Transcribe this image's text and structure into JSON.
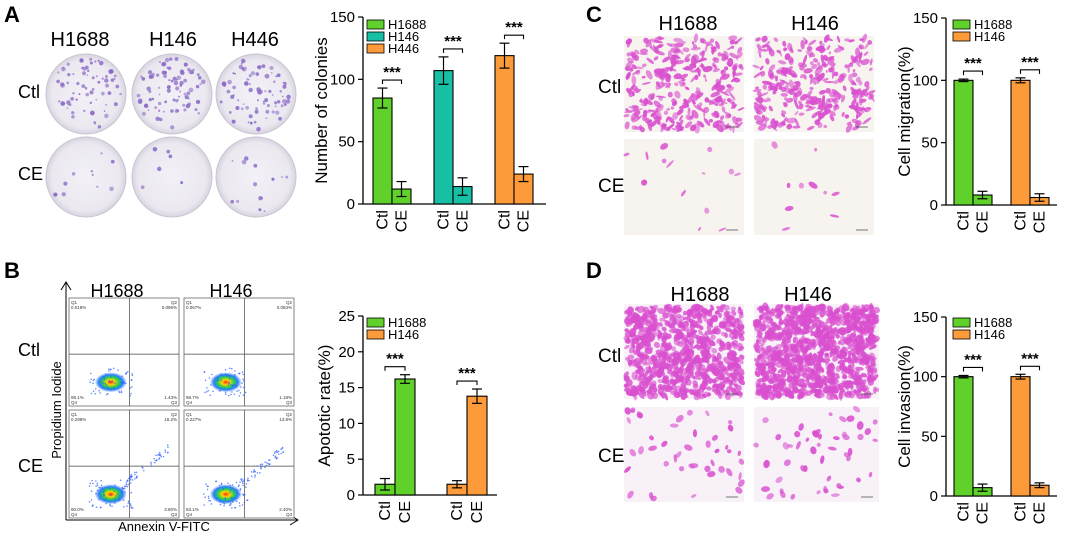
{
  "panels": {
    "A": {
      "letter": "A",
      "col_labels": [
        "H1688",
        "H146",
        "H446"
      ],
      "row_labels": [
        "Ctl",
        "CE"
      ]
    },
    "B": {
      "letter": "B",
      "col_labels": [
        "H1688",
        "H146"
      ],
      "row_labels": [
        "Ctl",
        "CE"
      ],
      "y_axis_label": "Propidium Iodide",
      "x_axis_label": "Annexin V-FITC",
      "quadrant_labels": [
        "Q1",
        "Q2",
        "Q4",
        "Q3"
      ],
      "quadrant_values": [
        [
          "0.018%",
          "0.096%",
          "98.1%",
          "1.43%"
        ],
        [
          "0.067%",
          "0.083%",
          "98.7%",
          "1.18%"
        ],
        [
          "0.298%",
          "16.2%",
          "80.0%",
          "3.80%"
        ],
        [
          "0.227%",
          "13.8%",
          "83.1%",
          "2.40%"
        ]
      ]
    },
    "C": {
      "letter": "C",
      "col_labels": [
        "H1688",
        "H146"
      ],
      "row_labels": [
        "Ctl",
        "CE"
      ]
    },
    "D": {
      "letter": "D",
      "col_labels": [
        "H1688",
        "H146"
      ],
      "row_labels": [
        "Ctl",
        "CE"
      ]
    }
  },
  "colors": {
    "green": "#5fd12a",
    "teal": "#18bfa5",
    "orange": "#fd9a3a",
    "crystal_violet": "#8c6bc8",
    "eosin_pink": "#d94fcf"
  },
  "chart_data": [
    {
      "id": "A",
      "type": "bar",
      "categories": [
        "Ctl",
        "CE"
      ],
      "series": [
        {
          "name": "H1688",
          "values": [
            85,
            12
          ],
          "errors": [
            8,
            6
          ],
          "color": "#5fd12a"
        },
        {
          "name": "H146",
          "values": [
            107,
            14
          ],
          "errors": [
            11,
            7
          ],
          "color": "#18bfa5"
        },
        {
          "name": "H446",
          "values": [
            119,
            24
          ],
          "errors": [
            10,
            6
          ],
          "color": "#fd9a3a"
        }
      ],
      "ylabel": "Number of colonies",
      "ylim": [
        0,
        150
      ],
      "yticks": [
        0,
        50,
        100,
        150
      ],
      "significance": [
        "***",
        "***",
        "***"
      ],
      "legend": "top-left"
    },
    {
      "id": "B",
      "type": "bar",
      "categories": [
        "Ctl",
        "CE"
      ],
      "series": [
        {
          "name": "H1688",
          "values": [
            1.5,
            16.2
          ],
          "errors": [
            0.8,
            0.6
          ],
          "color": "#5fd12a"
        },
        {
          "name": "H146",
          "values": [
            1.5,
            13.8
          ],
          "errors": [
            0.5,
            1.0
          ],
          "color": "#fd9a3a"
        }
      ],
      "ylabel": "Apototic rate(%)",
      "ylim": [
        0,
        25
      ],
      "yticks": [
        0,
        5,
        10,
        15,
        20,
        25
      ],
      "significance": [
        "***",
        "***"
      ],
      "legend": "top-left"
    },
    {
      "id": "C",
      "type": "bar",
      "categories": [
        "Ctl",
        "CE"
      ],
      "series": [
        {
          "name": "H1688",
          "values": [
            100,
            8
          ],
          "errors": [
            1,
            3
          ],
          "color": "#5fd12a"
        },
        {
          "name": "H146",
          "values": [
            100,
            6
          ],
          "errors": [
            2,
            3
          ],
          "color": "#fd9a3a"
        }
      ],
      "ylabel": "Cell migration(%)",
      "ylim": [
        0,
        150
      ],
      "yticks": [
        0,
        50,
        100,
        150
      ],
      "significance": [
        "***",
        "***"
      ],
      "legend": "top-left"
    },
    {
      "id": "D",
      "type": "bar",
      "categories": [
        "Ctl",
        "CE"
      ],
      "series": [
        {
          "name": "H1688",
          "values": [
            100,
            7
          ],
          "errors": [
            1,
            3
          ],
          "color": "#5fd12a"
        },
        {
          "name": "H146",
          "values": [
            100,
            9
          ],
          "errors": [
            2,
            2
          ],
          "color": "#fd9a3a"
        }
      ],
      "ylabel": "Cell invasion(%)",
      "ylim": [
        0,
        150
      ],
      "yticks": [
        0,
        50,
        100,
        150
      ],
      "significance": [
        "***",
        "***"
      ],
      "legend": "top-left"
    }
  ]
}
